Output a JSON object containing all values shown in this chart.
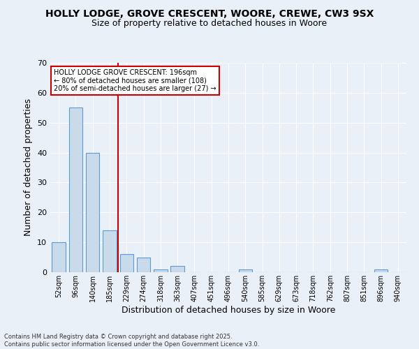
{
  "title1": "HOLLY LODGE, GROVE CRESCENT, WOORE, CREWE, CW3 9SX",
  "title2": "Size of property relative to detached houses in Woore",
  "xlabel": "Distribution of detached houses by size in Woore",
  "ylabel": "Number of detached properties",
  "categories": [
    "52sqm",
    "96sqm",
    "140sqm",
    "185sqm",
    "229sqm",
    "274sqm",
    "318sqm",
    "363sqm",
    "407sqm",
    "451sqm",
    "496sqm",
    "540sqm",
    "585sqm",
    "629sqm",
    "673sqm",
    "718sqm",
    "762sqm",
    "807sqm",
    "851sqm",
    "896sqm",
    "940sqm"
  ],
  "values": [
    10,
    55,
    40,
    14,
    6,
    5,
    1,
    2,
    0,
    0,
    0,
    1,
    0,
    0,
    0,
    0,
    0,
    0,
    0,
    1,
    0
  ],
  "bar_color": "#c9daea",
  "bar_edge_color": "#5b9bd5",
  "bg_color": "#eaf0f8",
  "grid_color": "#ffffff",
  "vline_x": 3.5,
  "vline_color": "#cc0000",
  "annotation_title": "HOLLY LODGE GROVE CRESCENT: 196sqm",
  "annotation_line1": "← 80% of detached houses are smaller (108)",
  "annotation_line2": "20% of semi-detached houses are larger (27) →",
  "footer1": "Contains HM Land Registry data © Crown copyright and database right 2025.",
  "footer2": "Contains public sector information licensed under the Open Government Licence v3.0.",
  "ylim": [
    0,
    70
  ],
  "yticks": [
    0,
    10,
    20,
    30,
    40,
    50,
    60,
    70
  ]
}
